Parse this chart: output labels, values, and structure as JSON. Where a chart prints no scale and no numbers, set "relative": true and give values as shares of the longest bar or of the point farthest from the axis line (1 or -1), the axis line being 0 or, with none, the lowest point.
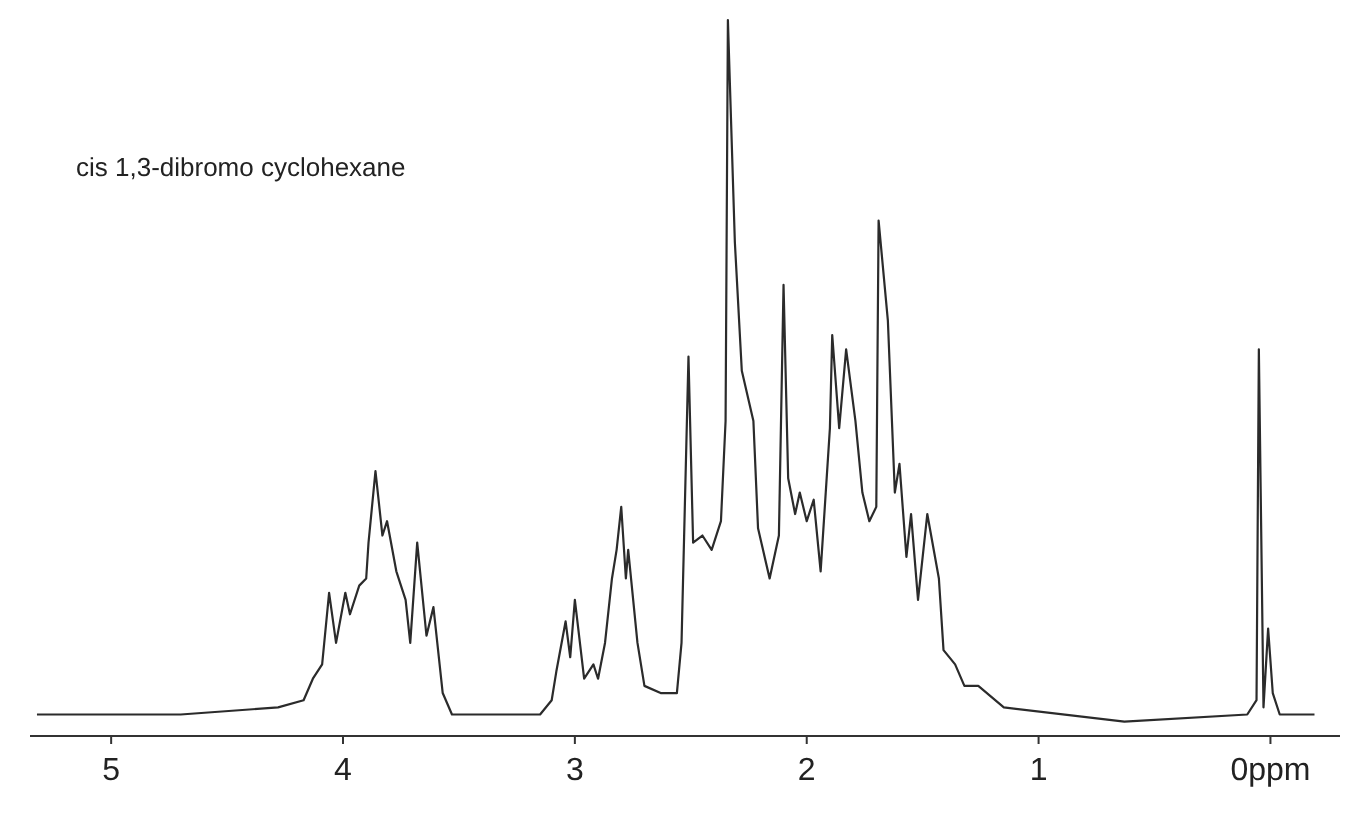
{
  "chart_data": {
    "type": "line",
    "title": "cis 1,3-dibromo cyclohexane",
    "relative": true,
    "xlim": [
      5.35,
      -0.3
    ],
    "xticks": [
      5,
      4,
      3,
      2,
      1,
      {
        "value": 0,
        "label": "0ppm"
      }
    ],
    "grid": false,
    "line_style": "solid",
    "series": [
      {
        "color": "#2b2b2b",
        "x": [
          5.32,
          4.7,
          4.28,
          4.17,
          4.13,
          4.09,
          4.06,
          4.03,
          3.99,
          3.97,
          3.93,
          3.9,
          3.89,
          3.86,
          3.83,
          3.81,
          3.77,
          3.73,
          3.71,
          3.68,
          3.64,
          3.61,
          3.57,
          3.53,
          3.15,
          3.1,
          3.08,
          3.04,
          3.02,
          3.0,
          2.96,
          2.92,
          2.9,
          2.87,
          2.84,
          2.82,
          2.8,
          2.78,
          2.77,
          2.73,
          2.7,
          2.63,
          2.56,
          2.54,
          2.51,
          2.49,
          2.45,
          2.41,
          2.37,
          2.35,
          2.34,
          2.31,
          2.28,
          2.23,
          2.21,
          2.16,
          2.12,
          2.1,
          2.08,
          2.05,
          2.03,
          2.0,
          1.97,
          1.94,
          1.9,
          1.89,
          1.86,
          1.83,
          1.79,
          1.76,
          1.73,
          1.7,
          1.69,
          1.65,
          1.62,
          1.6,
          1.57,
          1.55,
          1.52,
          1.48,
          1.43,
          1.41,
          1.36,
          1.32,
          1.26,
          1.15,
          0.63,
          0.1,
          0.06,
          0.05,
          0.03,
          0.01,
          -0.01,
          -0.04,
          -0.19
        ],
        "values": [
          0.03,
          0.03,
          0.04,
          0.05,
          0.08,
          0.1,
          0.2,
          0.13,
          0.2,
          0.17,
          0.21,
          0.22,
          0.27,
          0.37,
          0.28,
          0.3,
          0.23,
          0.19,
          0.13,
          0.27,
          0.14,
          0.18,
          0.06,
          0.03,
          0.03,
          0.05,
          0.09,
          0.16,
          0.11,
          0.19,
          0.08,
          0.1,
          0.08,
          0.13,
          0.22,
          0.26,
          0.32,
          0.22,
          0.26,
          0.13,
          0.07,
          0.06,
          0.06,
          0.13,
          0.53,
          0.27,
          0.28,
          0.26,
          0.3,
          0.44,
          1.0,
          0.69,
          0.51,
          0.44,
          0.29,
          0.22,
          0.28,
          0.63,
          0.36,
          0.31,
          0.34,
          0.3,
          0.33,
          0.23,
          0.43,
          0.56,
          0.43,
          0.54,
          0.44,
          0.34,
          0.3,
          0.32,
          0.72,
          0.58,
          0.34,
          0.38,
          0.25,
          0.31,
          0.19,
          0.31,
          0.22,
          0.12,
          0.1,
          0.07,
          0.07,
          0.04,
          0.02,
          0.03,
          0.05,
          0.54,
          0.04,
          0.15,
          0.06,
          0.03,
          0.03
        ]
      }
    ]
  }
}
